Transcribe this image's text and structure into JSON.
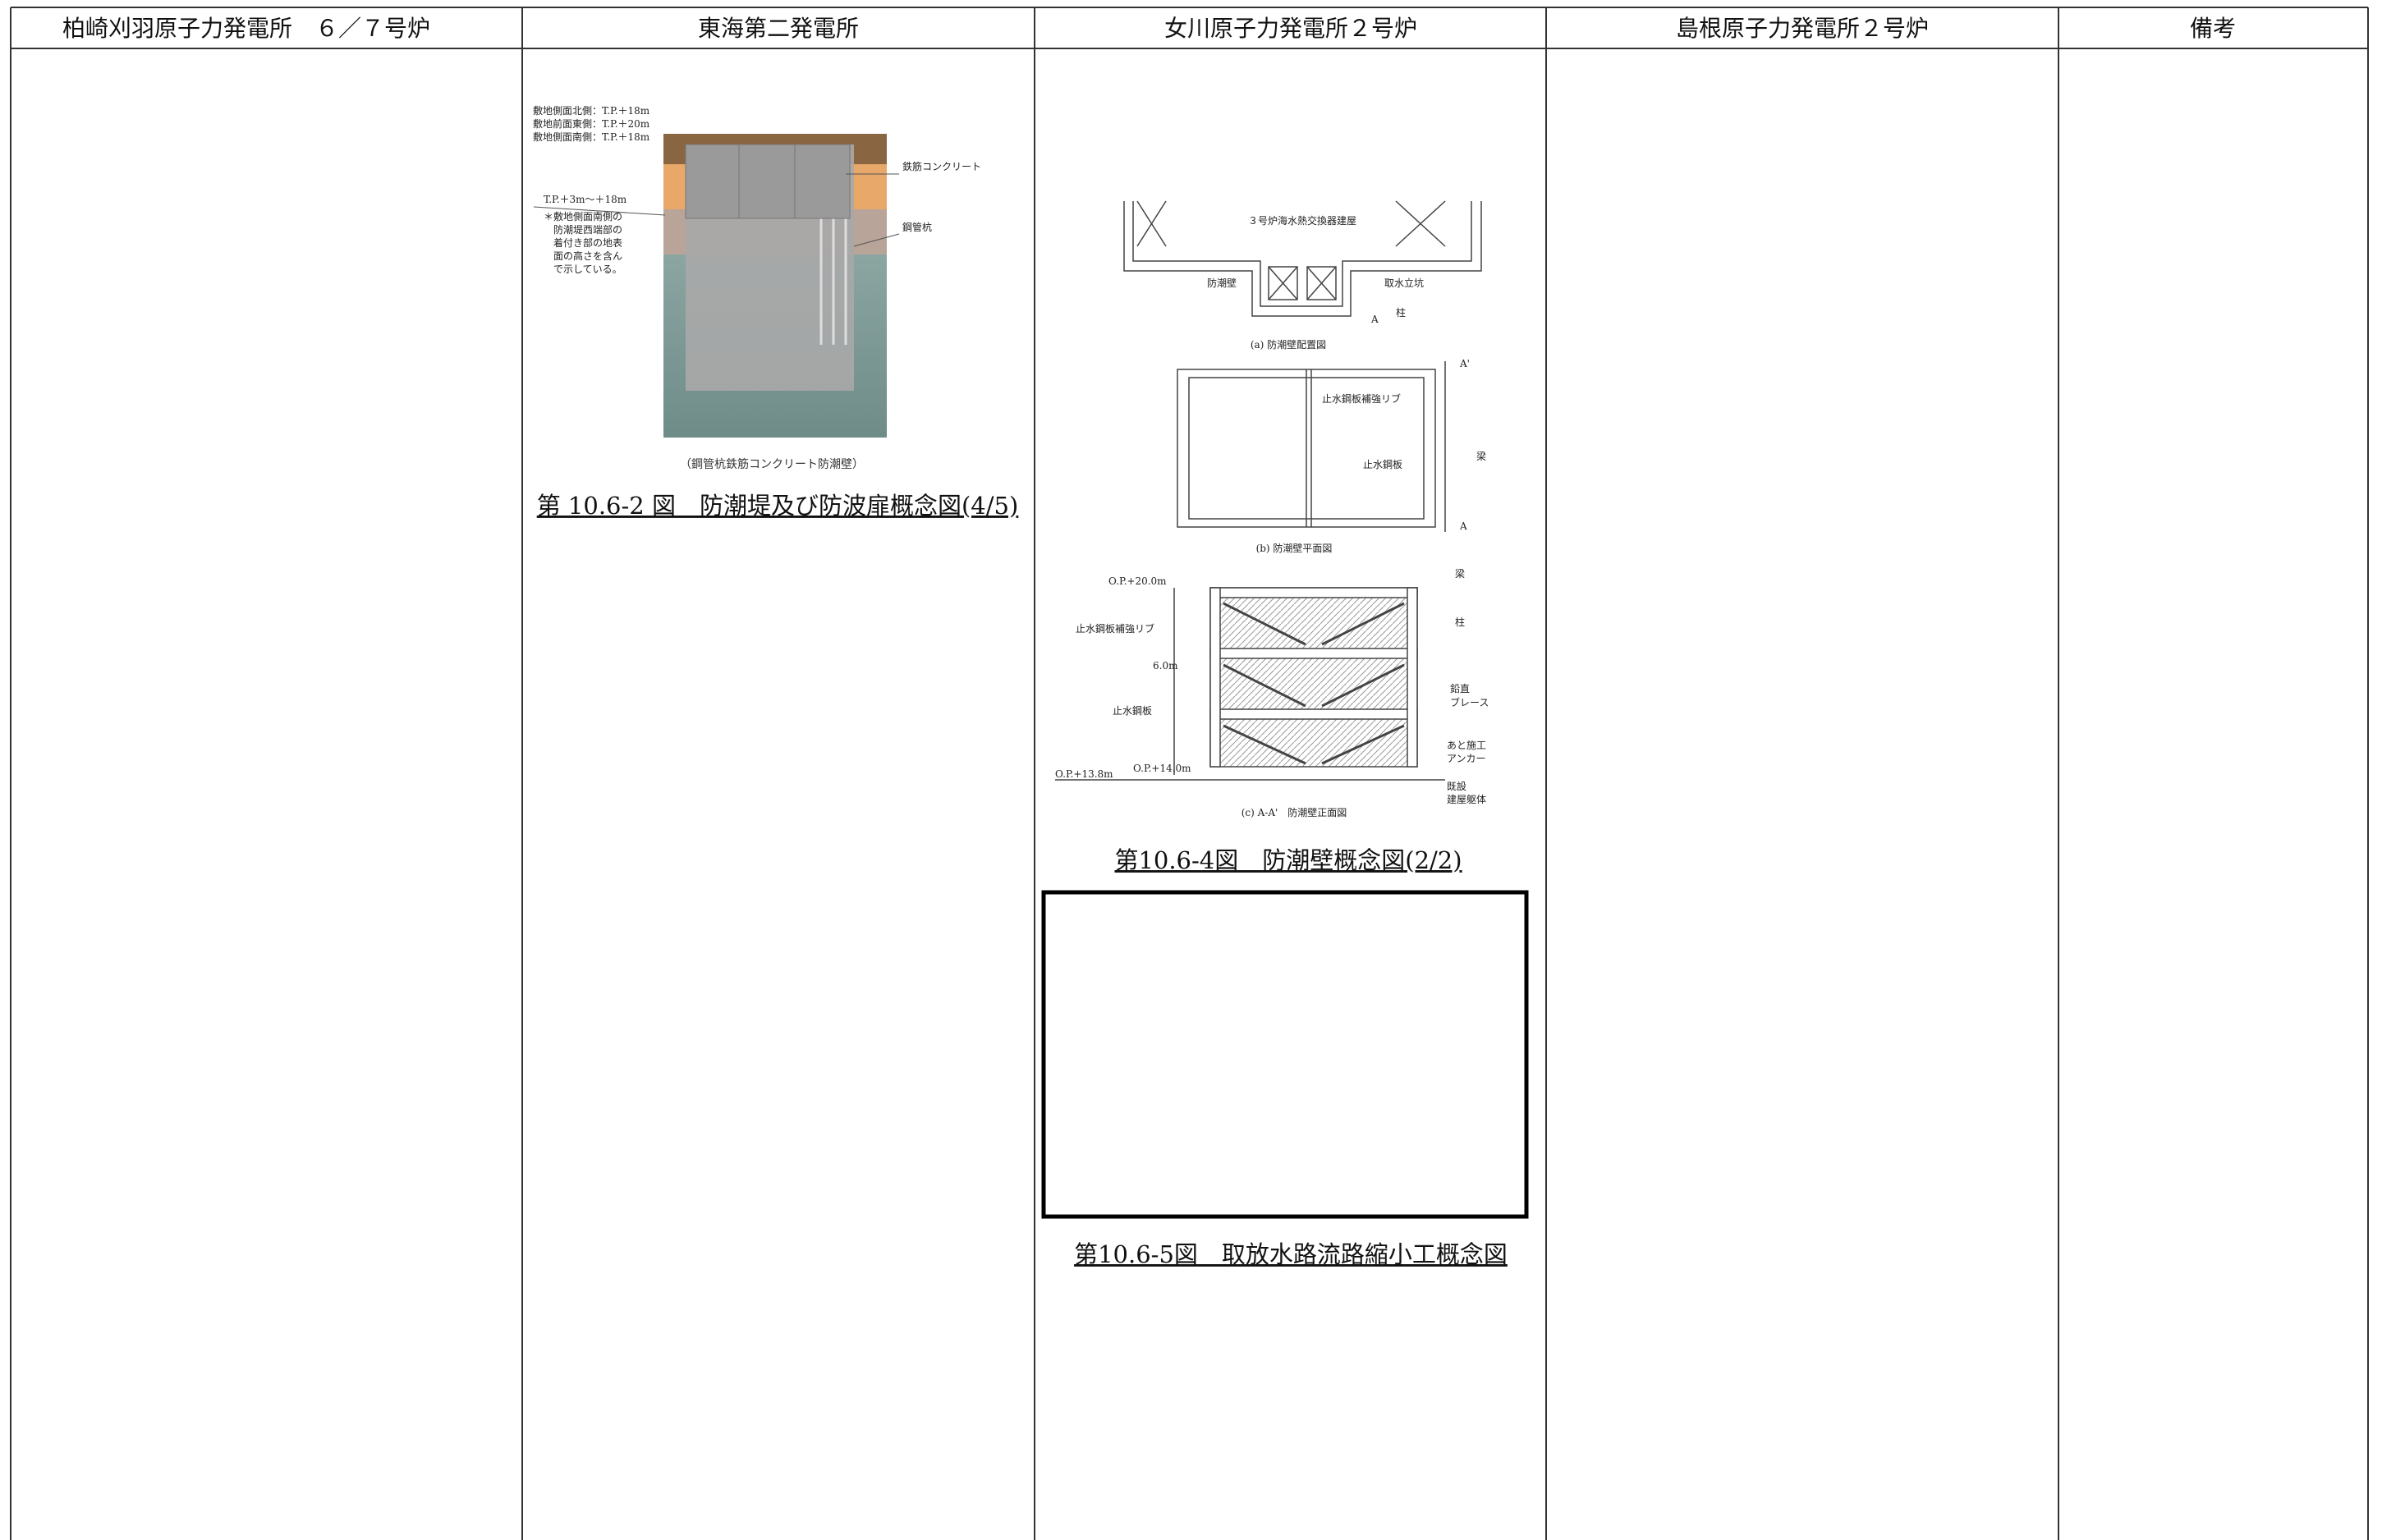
{
  "header": {
    "columns": [
      "柏崎刈羽原子力発電所　６／７号炉",
      "東海第二発電所",
      "女川原子力発電所２号炉",
      "島根原子力発電所２号炉",
      "備考"
    ]
  },
  "tokai": {
    "figure": {
      "labels": [
        "敷地側面北側：T.P.＋18m",
        "敷地前面東側：T.P.＋20m",
        "敷地側面南側：T.P.＋18m",
        "T.P.＋3m～＋18m",
        "鉄筋コンクリート",
        "鋼管杭"
      ],
      "note": [
        "＊敷地側面南側の",
        "防潮堤西端部の",
        "着付き部の地表",
        "面の高さを含ん",
        "で示している。"
      ],
      "subcaption": "（鋼管杭鉄筋コンクリート防潮壁）"
    },
    "caption": "第 10.6-2 図　防潮堤及び防波扉概念図(4/5)"
  },
  "onagawa": {
    "figure_a": {
      "labels": [
        "３号炉海水熱交換器建屋",
        "防潮壁",
        "取水立坑",
        "A"
      ],
      "caption": "(a) 防潮壁配置図"
    },
    "figure_b": {
      "labels": [
        "柱",
        "止水鋼板補強リブ",
        "止水鋼板",
        "梁",
        "A'",
        "A"
      ],
      "caption": "(b) 防潮壁平面図"
    },
    "figure_c": {
      "labels": [
        "O.P.+20.0m",
        "梁",
        "柱",
        "止水鋼板補強リブ",
        "6.0m",
        "止水鋼板",
        "鉛直",
        "ブレース",
        "あと施工",
        "アンカー",
        "O.P.+13.8m",
        "O.P.+14.0m",
        "既設",
        "建屋躯体"
      ],
      "caption": "(c) A-A'　防潮壁正面図"
    },
    "caption_1": "第10.6-4図　防潮壁概念図(2/2)",
    "caption_2": "第10.6-5図　取放水路流路縮小工概念図"
  }
}
